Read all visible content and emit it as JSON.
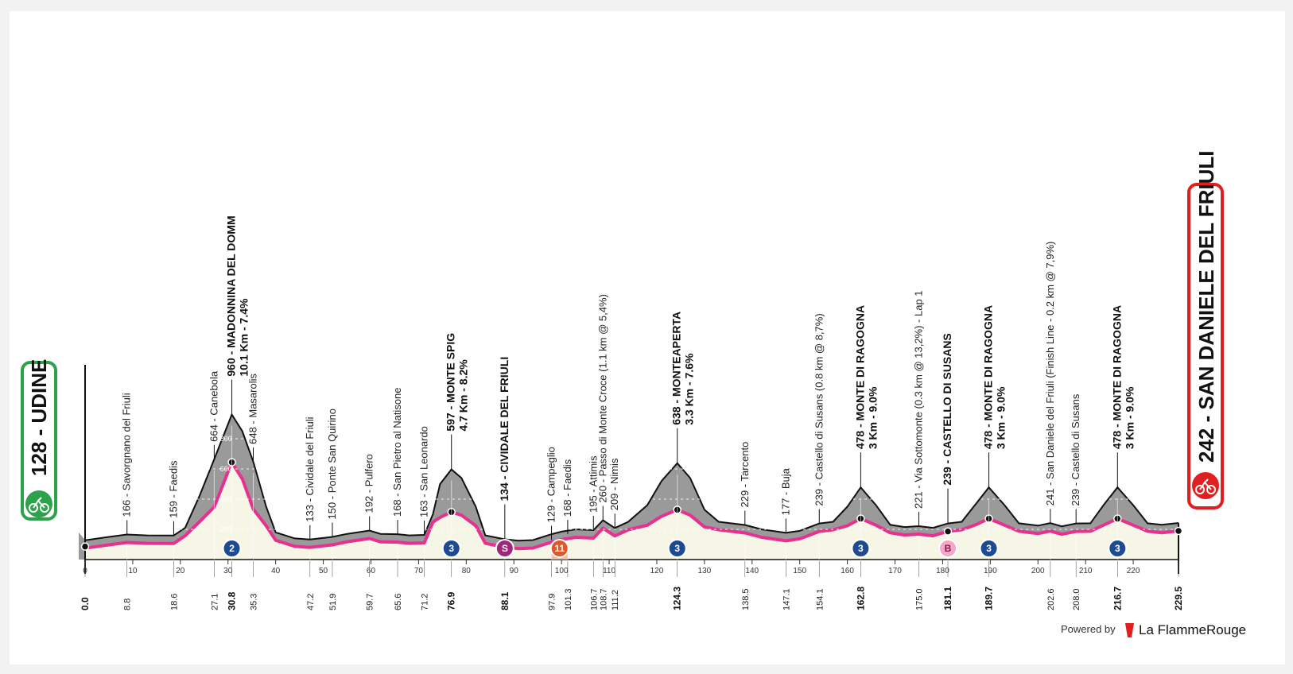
{
  "chart_data": {
    "type": "area",
    "title": "",
    "xlabel": "",
    "ylabel": "",
    "xlim": [
      0,
      229.5
    ],
    "ylim": [
      0,
      1000
    ],
    "x_ticks": [
      0,
      10,
      20,
      30,
      40,
      50,
      60,
      70,
      80,
      90,
      100,
      110,
      120,
      130,
      140,
      150,
      160,
      170,
      180,
      190,
      200,
      210,
      220
    ],
    "y_ticks": [
      200,
      400,
      600,
      800
    ],
    "start": {
      "altitude": "128",
      "name": "UDINE",
      "label": "128 - UDINE",
      "km": "0.0"
    },
    "finish": {
      "altitude": "242",
      "name": "SAN DANIELE DEL FRIULI",
      "label": "242 - SAN DANIELE DEL FRIULI",
      "km": "229.5"
    },
    "profile": [
      [
        0,
        128
      ],
      [
        5,
        150
      ],
      [
        8.8,
        166
      ],
      [
        13,
        160
      ],
      [
        18.6,
        159
      ],
      [
        21,
        210
      ],
      [
        24,
        420
      ],
      [
        27.1,
        664
      ],
      [
        30.8,
        960
      ],
      [
        33,
        850
      ],
      [
        35.3,
        648
      ],
      [
        38,
        350
      ],
      [
        40,
        180
      ],
      [
        44,
        140
      ],
      [
        47.2,
        133
      ],
      [
        51.9,
        150
      ],
      [
        55,
        170
      ],
      [
        59.7,
        192
      ],
      [
        62,
        170
      ],
      [
        65.6,
        168
      ],
      [
        68,
        160
      ],
      [
        71.2,
        163
      ],
      [
        73,
        300
      ],
      [
        74.5,
        500
      ],
      [
        76.9,
        597
      ],
      [
        79,
        540
      ],
      [
        82,
        350
      ],
      [
        84,
        160
      ],
      [
        88.1,
        134
      ],
      [
        91,
        125
      ],
      [
        94,
        129
      ],
      [
        97.9,
        168
      ],
      [
        100,
        185
      ],
      [
        103,
        200
      ],
      [
        106.7,
        195
      ],
      [
        108.7,
        260
      ],
      [
        111.2,
        209
      ],
      [
        114,
        250
      ],
      [
        118,
        360
      ],
      [
        121,
        520
      ],
      [
        124.3,
        638
      ],
      [
        127,
        540
      ],
      [
        130,
        330
      ],
      [
        133,
        250
      ],
      [
        138.5,
        229
      ],
      [
        142,
        200
      ],
      [
        147.1,
        177
      ],
      [
        150,
        190
      ],
      [
        154.1,
        239
      ],
      [
        157,
        250
      ],
      [
        160,
        350
      ],
      [
        162.8,
        478
      ],
      [
        166,
        360
      ],
      [
        169,
        230
      ],
      [
        172,
        215
      ],
      [
        175.0,
        221
      ],
      [
        178,
        210
      ],
      [
        181.1,
        239
      ],
      [
        184,
        250
      ],
      [
        187,
        370
      ],
      [
        189.7,
        478
      ],
      [
        193,
        360
      ],
      [
        196,
        240
      ],
      [
        200,
        225
      ],
      [
        202.6,
        241
      ],
      [
        205,
        220
      ],
      [
        208.0,
        239
      ],
      [
        211,
        240
      ],
      [
        214,
        370
      ],
      [
        216.7,
        478
      ],
      [
        220,
        360
      ],
      [
        223,
        240
      ],
      [
        226,
        230
      ],
      [
        229.5,
        242
      ]
    ],
    "km_labels": [
      "0.0",
      "8.8",
      "18.6",
      "27.1",
      "30.8",
      "35.3",
      "47.2",
      "51.9",
      "59.7",
      "65.6",
      "71.2",
      "76.9",
      "88.1",
      "97.9",
      "101.3",
      "106.7",
      "108.7",
      "111.2",
      "124.3",
      "138.5",
      "147.1",
      "154.1",
      "162.8",
      "175.0",
      "181.1",
      "189.7",
      "202.6",
      "208.0",
      "216.7",
      "229.5"
    ],
    "waypoints": [
      {
        "km": 8.8,
        "alt": 166,
        "text": "166 - Savorgnano del Friuli",
        "bold": false
      },
      {
        "km": 18.6,
        "alt": 159,
        "text": "159 - Faedis",
        "bold": false
      },
      {
        "km": 27.1,
        "alt": 664,
        "text": "664 - Canebola",
        "bold": false
      },
      {
        "km": 30.8,
        "alt": 960,
        "text": "960 - MADONNINA DEL DOMM",
        "text2": "10.1 Km - 7.4%",
        "bold": true
      },
      {
        "km": 35.3,
        "alt": 648,
        "text": "648 - Masarolis",
        "bold": false
      },
      {
        "km": 47.2,
        "alt": 133,
        "text": "133 - Cividale del Friuli",
        "bold": false
      },
      {
        "km": 51.9,
        "alt": 150,
        "text": "150 - Ponte San Quirino",
        "bold": false
      },
      {
        "km": 59.7,
        "alt": 192,
        "text": "192 - Pulfero",
        "bold": false
      },
      {
        "km": 65.6,
        "alt": 168,
        "text": "168 - San Pietro al Natisone",
        "bold": false
      },
      {
        "km": 71.2,
        "alt": 163,
        "text": "163 - San Leonardo",
        "bold": false
      },
      {
        "km": 76.9,
        "alt": 597,
        "text": "597 - MONTE SPIG",
        "text2": "4.7 Km - 8.2%",
        "bold": true
      },
      {
        "km": 88.1,
        "alt": 134,
        "text": "134 - CIVIDALE DEL FRIULI",
        "bold": true
      },
      {
        "km": 97.9,
        "alt": 129,
        "text": "129 - Campeglio",
        "bold": false
      },
      {
        "km": 101.3,
        "alt": 168,
        "text": "168 - Faedis",
        "bold": false
      },
      {
        "km": 106.7,
        "alt": 195,
        "text": "195 - Attimis",
        "bold": false
      },
      {
        "km": 108.7,
        "alt": 260,
        "text": "260 - Passo di Monte Croce (1.1 km @ 5,4%)",
        "bold": false
      },
      {
        "km": 111.2,
        "alt": 209,
        "text": "209 - Nimis",
        "bold": false
      },
      {
        "km": 124.3,
        "alt": 638,
        "text": "638 - MONTEAPERTA",
        "text2": "3.3 Km - 7.6%",
        "bold": true
      },
      {
        "km": 138.5,
        "alt": 229,
        "text": "229 - Tarcento",
        "bold": false
      },
      {
        "km": 147.1,
        "alt": 177,
        "text": "177 - Buja",
        "bold": false
      },
      {
        "km": 154.1,
        "alt": 239,
        "text": "239 - Castello di Susans (0.8 km @ 8,7%)",
        "bold": false
      },
      {
        "km": 162.8,
        "alt": 478,
        "text": "478 - MONTE DI RAGOGNA",
        "text2": "3 Km - 9.0%",
        "bold": true
      },
      {
        "km": 175.0,
        "alt": 221,
        "text": "221 - Via Sottomonte (0.3 km @ 13,2%) - Lap 1",
        "bold": false
      },
      {
        "km": 181.1,
        "alt": 239,
        "text": "239 - CASTELLO DI SUSANS",
        "bold": true
      },
      {
        "km": 189.7,
        "alt": 478,
        "text": "478 - MONTE DI RAGOGNA",
        "text2": "3 Km - 9.0%",
        "bold": true
      },
      {
        "km": 202.6,
        "alt": 241,
        "text": "241 - San Daniele del Friuli (Finish Line - 0.2 km @ 7,9%)",
        "bold": false
      },
      {
        "km": 208.0,
        "alt": 239,
        "text": "239 - Castello di Susans",
        "bold": false
      },
      {
        "km": 216.7,
        "alt": 478,
        "text": "478 - MONTE DI RAGOGNA",
        "text2": "3 Km - 9.0%",
        "bold": true
      }
    ],
    "categories_marks": [
      {
        "km": 30.8,
        "label": "2",
        "kind": "kom"
      },
      {
        "km": 76.9,
        "label": "3",
        "kind": "kom"
      },
      {
        "km": 88.1,
        "label": "S",
        "kind": "sprint"
      },
      {
        "km": 124.3,
        "label": "3",
        "kind": "kom"
      },
      {
        "km": 162.8,
        "label": "3",
        "kind": "kom"
      },
      {
        "km": 181.1,
        "label": "B",
        "kind": "bonus"
      },
      {
        "km": 189.7,
        "label": "3",
        "kind": "kom"
      },
      {
        "km": 216.7,
        "label": "3",
        "kind": "kom"
      }
    ],
    "feed_zone": {
      "km_from": 97.9,
      "km_to": 101.3,
      "label": "11"
    },
    "colors": {
      "fill_light": "#f6f6e6",
      "fill_grey": "#9a9a9a",
      "line": "#e8308f",
      "kom": "#1e4b8f",
      "sprint": "#a0277a",
      "bonus": "#f7a6c8",
      "feed": "#f6b59b",
      "start": "#2ca24a",
      "finish": "#e02020"
    }
  },
  "footer": {
    "powered_by": "Powered by",
    "brand": "La FlammeRouge",
    "brand_icon": "flamme-rouge-logo-icon"
  }
}
